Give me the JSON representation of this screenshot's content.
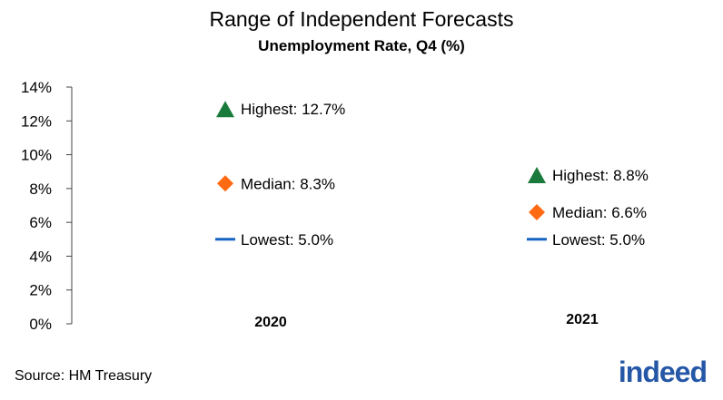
{
  "title": "Range of Independent Forecasts",
  "subtitle": "Unemployment Rate, Q4 (%)",
  "source": "Source: HM Treasury",
  "logo_text": "indeed",
  "colors": {
    "highest": "#1a7a3c",
    "median": "#ff6a13",
    "lowest": "#1565c0",
    "logo": "#2557a7"
  },
  "chart_data": {
    "type": "scatter",
    "categories": [
      "2020",
      "2021"
    ],
    "ylim": [
      0,
      14
    ],
    "y_ticks": [
      0,
      2,
      4,
      6,
      8,
      10,
      12,
      14
    ],
    "y_tick_labels": [
      "0%",
      "2%",
      "4%",
      "6%",
      "8%",
      "10%",
      "12%",
      "14%"
    ],
    "series": [
      {
        "name": "Highest",
        "marker": "triangle",
        "values": [
          12.7,
          8.8
        ],
        "labels": [
          "Highest: 12.7%",
          "Highest: 8.8%"
        ]
      },
      {
        "name": "Median",
        "marker": "diamond",
        "values": [
          8.3,
          6.6
        ],
        "labels": [
          "Median: 8.3%",
          "Median: 6.6%"
        ]
      },
      {
        "name": "Lowest",
        "marker": "dash",
        "values": [
          5.0,
          5.0
        ],
        "labels": [
          "Lowest: 5.0%",
          "Lowest: 5.0%"
        ]
      }
    ]
  }
}
